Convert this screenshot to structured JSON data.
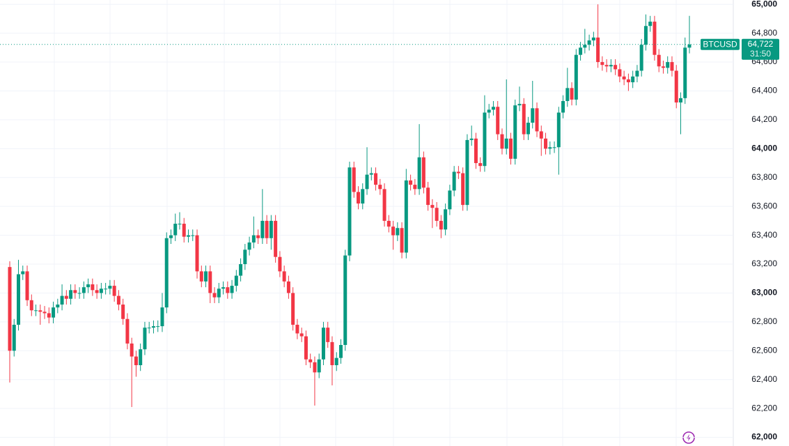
{
  "chart_data": {
    "type": "candlestick",
    "symbol": "BTCUSD",
    "last_price": 64722,
    "last_price_label": "64,722",
    "countdown": "31:50",
    "up_color": "#089981",
    "down_color": "#f23645",
    "grid": true,
    "ylim": [
      61940,
      65030
    ],
    "yticks": [
      {
        "value": 62000,
        "label": "62,000"
      },
      {
        "value": 62200,
        "label": "62,200"
      },
      {
        "value": 62400,
        "label": "62,400"
      },
      {
        "value": 62600,
        "label": "62,600"
      },
      {
        "value": 62800,
        "label": "62,800"
      },
      {
        "value": 63000,
        "label": "63,000"
      },
      {
        "value": 63200,
        "label": "63,200"
      },
      {
        "value": 63400,
        "label": "63,400"
      },
      {
        "value": 63600,
        "label": "63,600"
      },
      {
        "value": 63800,
        "label": "63,800"
      },
      {
        "value": 64000,
        "label": "64,000"
      },
      {
        "value": 64200,
        "label": "64,200"
      },
      {
        "value": 64400,
        "label": "64,400"
      },
      {
        "value": 64600,
        "label": "64,600"
      },
      {
        "value": 64800,
        "label": "64,800"
      },
      {
        "value": 65000,
        "label": "65,000"
      }
    ],
    "open": [
      63180,
      62600,
      62780,
      63130,
      63150,
      62950,
      62880,
      62880,
      62870,
      62860,
      62830,
      62900,
      62920,
      62980,
      62960,
      63020,
      63000,
      63000,
      63040,
      63060,
      63020,
      63000,
      63030,
      63030,
      63050,
      62980,
      62920,
      62820,
      62650,
      62560,
      62500,
      62610,
      62760,
      62760,
      62770,
      62770,
      62900,
      63380,
      63400,
      63480,
      63480,
      63390,
      63400,
      63400,
      63150,
      63080,
      63150,
      63000,
      62970,
      63030,
      63040,
      63000,
      63050,
      63120,
      63200,
      63300,
      63350,
      63400,
      63380,
      63500,
      63380,
      63500,
      63250,
      63150,
      63080,
      63000,
      62780,
      62720,
      62700,
      62540,
      62520,
      62450,
      62540,
      62760,
      62660,
      62500,
      62550,
      62640,
      63260,
      63870,
      63700,
      63620,
      63720,
      63820,
      63830,
      63750,
      63720,
      63500,
      63460,
      63400,
      63450,
      63280,
      63780,
      63750,
      63720,
      63940,
      63730,
      63610,
      63590,
      63500,
      63440,
      63580,
      63710,
      63840,
      63830,
      63610,
      64060,
      64070,
      63900,
      63880,
      64250,
      64270,
      64290,
      64100,
      64000,
      64070,
      63930,
      64300,
      64310,
      64100,
      64180,
      64280,
      64120,
      64070,
      64000,
      64010,
      64010,
      64250,
      64330,
      64420,
      64340,
      64650,
      64700,
      64720,
      64750,
      64770,
      64600,
      64580,
      64570,
      64580,
      64550,
      64500,
      64480,
      64460,
      64500,
      64540,
      64720,
      64850,
      64880,
      64650,
      64570,
      64560,
      64600,
      64540,
      64320,
      64350,
      64700
    ],
    "high": [
      63220,
      62820,
      63230,
      63190,
      63190,
      62990,
      62920,
      62920,
      62910,
      62900,
      62940,
      62960,
      63060,
      63020,
      63060,
      63060,
      63040,
      63080,
      63100,
      63100,
      63060,
      63070,
      63070,
      63090,
      63090,
      63020,
      62960,
      62860,
      62690,
      62600,
      62650,
      62800,
      62800,
      62810,
      62810,
      63000,
      63420,
      63440,
      63550,
      63560,
      63520,
      63440,
      63440,
      63440,
      63190,
      63190,
      63190,
      63040,
      63070,
      63080,
      63080,
      63090,
      63160,
      63240,
      63340,
      63390,
      63530,
      63440,
      63720,
      63540,
      63540,
      63540,
      63290,
      63190,
      63120,
      63040,
      62820,
      62760,
      62740,
      62580,
      62560,
      62580,
      62800,
      62800,
      62700,
      62590,
      62680,
      63300,
      63910,
      63910,
      63740,
      63760,
      64010,
      63870,
      63870,
      63790,
      63760,
      63540,
      63500,
      63490,
      63490,
      63860,
      63820,
      63790,
      64170,
      63980,
      63770,
      63650,
      63630,
      63540,
      63620,
      63750,
      63880,
      63880,
      63870,
      64100,
      64160,
      64110,
      63940,
      64370,
      64310,
      64330,
      64330,
      64140,
      64480,
      64110,
      64340,
      64430,
      64350,
      64220,
      64470,
      64320,
      64160,
      64110,
      64050,
      64050,
      64290,
      64370,
      64560,
      64460,
      64690,
      64740,
      64830,
      64790,
      64810,
      65000,
      64640,
      64620,
      64620,
      64620,
      64590,
      64540,
      64520,
      64540,
      64580,
      64760,
      64930,
      64920,
      64920,
      64690,
      64610,
      64640,
      64640,
      64580,
      64390,
      64770,
      64920
    ],
    "low": [
      62380,
      62560,
      62740,
      63090,
      62910,
      62840,
      62840,
      62780,
      62820,
      62790,
      62790,
      62860,
      62880,
      62920,
      62920,
      62960,
      62960,
      62960,
      63000,
      62980,
      62960,
      62960,
      62990,
      62990,
      62940,
      62880,
      62780,
      62610,
      62210,
      62420,
      62460,
      62570,
      62720,
      62720,
      62730,
      62730,
      62860,
      63340,
      63360,
      63440,
      63350,
      63350,
      63360,
      63100,
      63040,
      63040,
      62930,
      62930,
      62930,
      62990,
      62960,
      62960,
      63010,
      63080,
      63160,
      63260,
      63310,
      63340,
      63340,
      63340,
      63300,
      63210,
      63110,
      63040,
      62960,
      62740,
      62680,
      62660,
      62500,
      62480,
      62220,
      62410,
      62500,
      62620,
      62360,
      62460,
      62510,
      62600,
      63220,
      63660,
      63580,
      63580,
      63680,
      63780,
      63710,
      63680,
      63460,
      63420,
      63300,
      63360,
      63240,
      63240,
      63710,
      63680,
      63680,
      63690,
      63570,
      63450,
      63460,
      63380,
      63400,
      63540,
      63670,
      63790,
      63570,
      63570,
      64020,
      63860,
      63840,
      63840,
      64210,
      64230,
      64060,
      63960,
      63960,
      63890,
      63890,
      64260,
      64060,
      64060,
      64140,
      64080,
      63950,
      63960,
      63960,
      63970,
      63820,
      64210,
      64290,
      64300,
      64300,
      64610,
      64660,
      64680,
      64710,
      64560,
      64540,
      64530,
      64530,
      64510,
      64460,
      64440,
      64400,
      64420,
      64460,
      64500,
      64680,
      64810,
      64610,
      64530,
      64520,
      64520,
      64500,
      64280,
      64100,
      64310,
      64660
    ],
    "close": [
      62600,
      62780,
      63130,
      63150,
      62950,
      62880,
      62880,
      62870,
      62860,
      62830,
      62900,
      62920,
      62980,
      62960,
      63020,
      63000,
      63000,
      63040,
      63060,
      63020,
      63000,
      63030,
      63030,
      63050,
      62980,
      62920,
      62820,
      62650,
      62560,
      62500,
      62610,
      62760,
      62760,
      62770,
      62770,
      62900,
      63380,
      63400,
      63480,
      63480,
      63390,
      63400,
      63400,
      63150,
      63080,
      63150,
      63000,
      62970,
      63030,
      63040,
      63000,
      63050,
      63120,
      63200,
      63300,
      63350,
      63400,
      63380,
      63500,
      63380,
      63500,
      63250,
      63150,
      63080,
      63000,
      62780,
      62720,
      62700,
      62540,
      62520,
      62450,
      62540,
      62760,
      62660,
      62500,
      62550,
      62640,
      63260,
      63870,
      63700,
      63620,
      63720,
      63820,
      63830,
      63750,
      63720,
      63500,
      63460,
      63400,
      63450,
      63280,
      63780,
      63750,
      63720,
      63940,
      63730,
      63610,
      63590,
      63500,
      63440,
      63580,
      63710,
      63840,
      63830,
      63610,
      64060,
      64070,
      63900,
      63880,
      64250,
      64270,
      64290,
      64100,
      64000,
      64070,
      63930,
      64300,
      64310,
      64100,
      64180,
      64280,
      64120,
      64070,
      64000,
      64010,
      64010,
      64250,
      64330,
      64420,
      64340,
      64650,
      64700,
      64720,
      64750,
      64770,
      64600,
      64580,
      64570,
      64580,
      64550,
      64500,
      64480,
      64460,
      64500,
      64540,
      64720,
      64850,
      64880,
      64650,
      64570,
      64560,
      64600,
      64540,
      64320,
      64350,
      64700,
      64722
    ]
  }
}
